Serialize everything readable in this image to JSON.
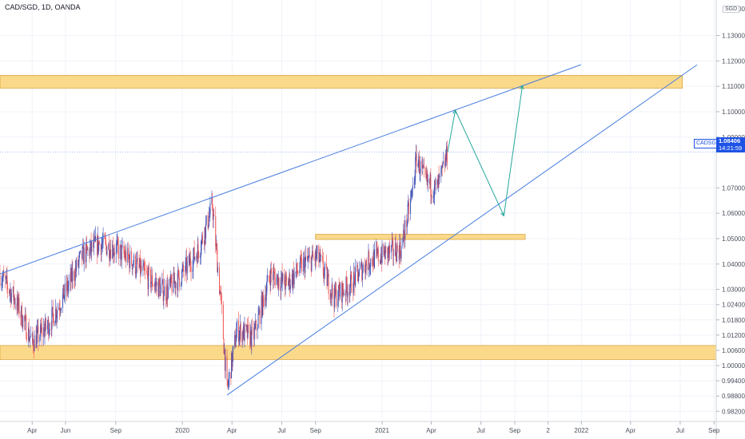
{
  "header": {
    "symbol_line": "CAD/SGD, 1D, OANDA"
  },
  "currency_label": "SGD",
  "price_tag": {
    "symbol": "CADSGD",
    "price": "1.08406",
    "countdown": "14:21:59"
  },
  "colors": {
    "up": "#3f51b5",
    "down": "#ef5350",
    "zone_fill": "#fbd98b",
    "zone_stroke": "#d9a43c",
    "trendline": "#4a7ee0",
    "projection": "#26a69a",
    "price_line": "#2962ff"
  },
  "chart_data": {
    "type": "candlestick",
    "title": "CAD/SGD, 1D, OANDA",
    "ylim": [
      0.978,
      1.144
    ],
    "y_ticks": [
      "1.13000",
      "1.12000",
      "1.11000",
      "1.10000",
      "1.09000",
      "1.07000",
      "1.06000",
      "1.05000",
      "1.04000",
      "1.03000",
      "1.02400",
      "1.01800",
      "1.01200",
      "1.00600",
      "1.00000",
      "0.99400",
      "0.98800",
      "0.98200"
    ],
    "y_tick_values": [
      1.13,
      1.12,
      1.11,
      1.1,
      1.09,
      1.07,
      1.06,
      1.05,
      1.04,
      1.03,
      1.024,
      1.018,
      1.012,
      1.006,
      1.0,
      0.994,
      0.988,
      0.982
    ],
    "y_tick_partial": "1.14000",
    "x_ticks": [
      "Apr",
      "Jun",
      "Sep",
      "2020",
      "Apr",
      "Jul",
      "Sep",
      "2021",
      "Apr",
      "Jul",
      "Sep",
      "2",
      "2022",
      "Apr",
      "Jul",
      "Sep"
    ],
    "x_tick_dates": [
      "2019-04-01",
      "2019-06-01",
      "2019-09-01",
      "2020-01-01",
      "2020-04-01",
      "2020-07-01",
      "2020-09-01",
      "2021-01-01",
      "2021-04-01",
      "2021-07-01",
      "2021-09-01",
      "2021-11-01",
      "2022-01-01",
      "2022-04-01",
      "2022-07-01",
      "2022-09-01"
    ],
    "xlim": [
      "2019-02-01",
      "2022-09-05"
    ],
    "last_price": 1.08406,
    "price_path": [
      [
        "2019-02-01",
        1.036
      ],
      [
        "2019-03-01",
        1.026
      ],
      [
        "2019-04-01",
        1.009
      ],
      [
        "2019-05-01",
        1.016
      ],
      [
        "2019-06-01",
        1.029
      ],
      [
        "2019-07-01",
        1.043
      ],
      [
        "2019-08-01",
        1.048
      ],
      [
        "2019-09-01",
        1.046
      ],
      [
        "2019-10-01",
        1.041
      ],
      [
        "2019-11-01",
        1.034
      ],
      [
        "2019-12-01",
        1.029
      ],
      [
        "2020-01-01",
        1.036
      ],
      [
        "2020-02-01",
        1.046
      ],
      [
        "2020-02-25",
        1.063
      ],
      [
        "2020-03-12",
        1.024
      ],
      [
        "2020-03-23",
        0.99
      ],
      [
        "2020-04-10",
        1.014
      ],
      [
        "2020-05-10",
        1.011
      ],
      [
        "2020-06-10",
        1.036
      ],
      [
        "2020-07-10",
        1.032
      ],
      [
        "2020-08-10",
        1.04
      ],
      [
        "2020-09-05",
        1.043
      ],
      [
        "2020-10-05",
        1.027
      ],
      [
        "2020-11-05",
        1.032
      ],
      [
        "2020-12-05",
        1.041
      ],
      [
        "2021-01-05",
        1.044
      ],
      [
        "2021-02-05",
        1.046
      ],
      [
        "2021-02-25",
        1.068
      ],
      [
        "2021-03-05",
        1.082
      ],
      [
        "2021-03-20",
        1.073
      ],
      [
        "2021-04-10",
        1.069
      ],
      [
        "2021-04-20",
        1.075
      ],
      [
        "2021-05-01",
        1.084
      ]
    ],
    "zones": [
      {
        "y0": 1.1093,
        "y1": 1.1143,
        "start": "2019-02-01",
        "end": "2022-07-05"
      },
      {
        "y0": 1.0497,
        "y1": 1.0517,
        "start": "2020-09-01",
        "end": "2021-09-20"
      },
      {
        "y0": 1.0024,
        "y1": 1.0079,
        "start": "2019-02-01",
        "end": "2022-09-05"
      }
    ],
    "trendlines": [
      {
        "from": [
          "2019-02-01",
          1.0361
        ],
        "to": [
          "2021-12-31",
          1.1185
        ]
      },
      {
        "from": [
          "2020-03-23",
          0.9884
        ],
        "to": [
          "2022-08-01",
          1.1185
        ]
      }
    ],
    "projection": [
      [
        "2021-05-01",
        1.084
      ],
      [
        "2021-05-15",
        1.1006
      ],
      [
        "2021-08-12",
        1.059
      ],
      [
        "2021-09-15",
        1.1103
      ]
    ]
  }
}
